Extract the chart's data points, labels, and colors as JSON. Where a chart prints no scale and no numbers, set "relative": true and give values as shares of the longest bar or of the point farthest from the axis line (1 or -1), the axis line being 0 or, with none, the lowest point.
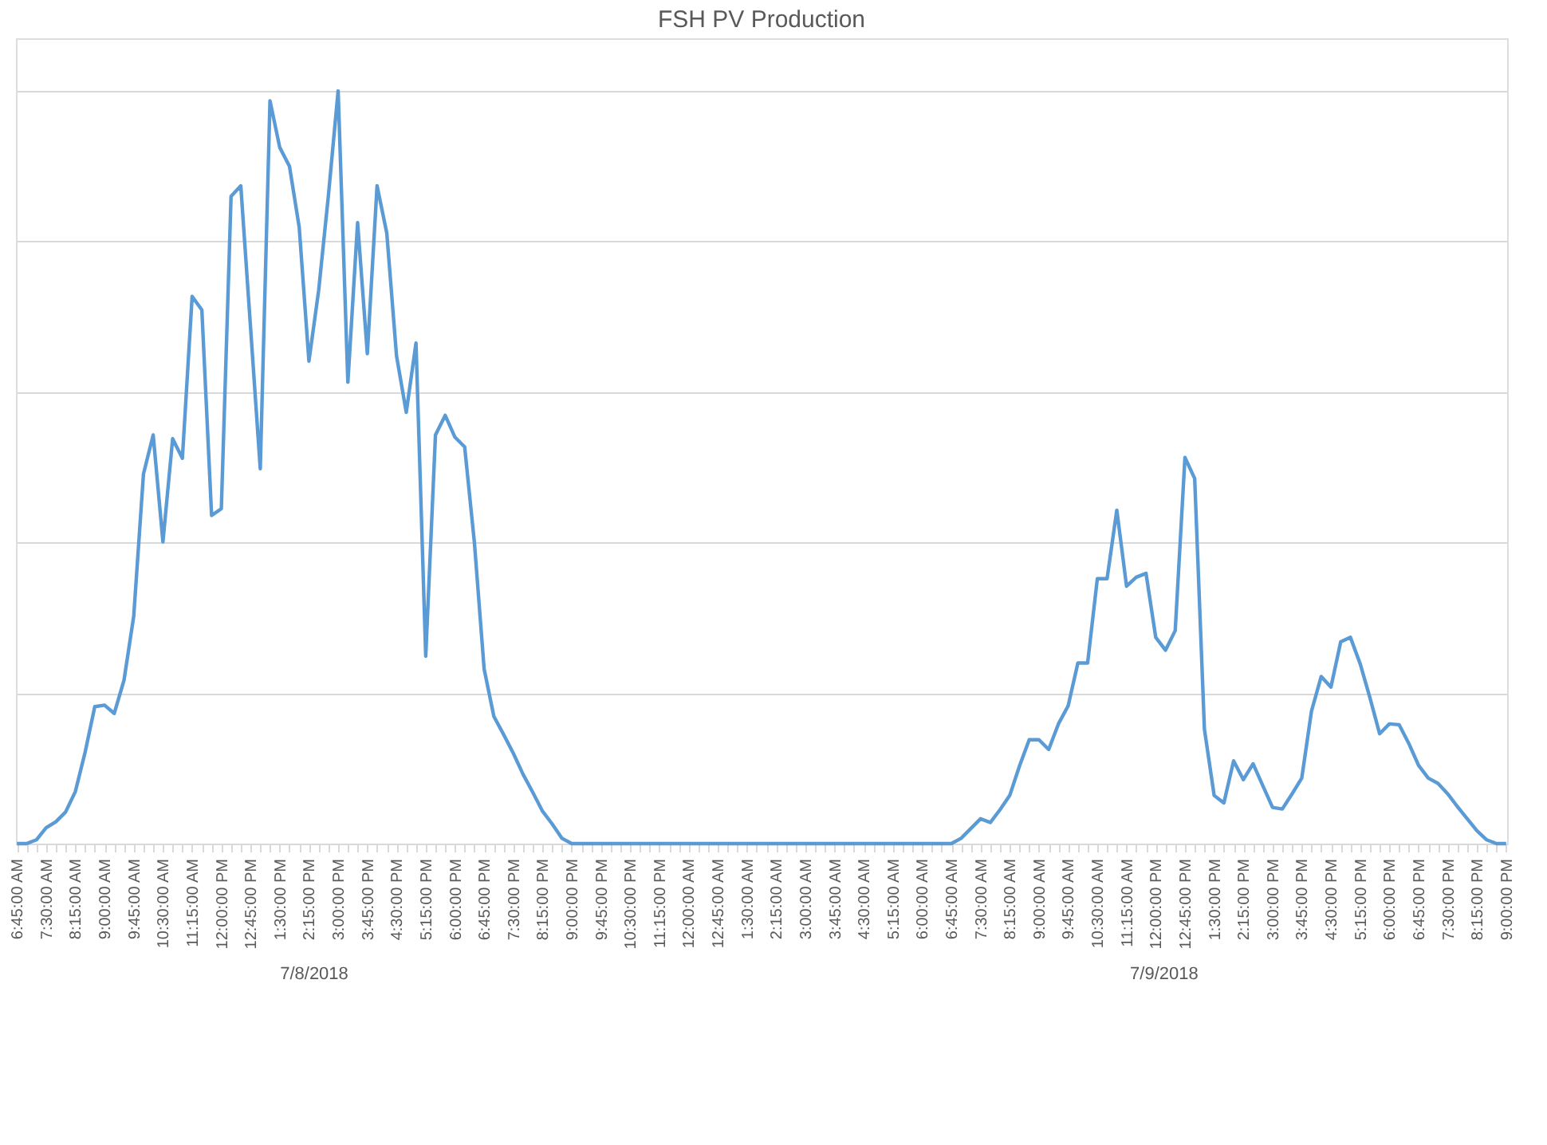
{
  "chart_data": {
    "type": "line",
    "title": "FSH PV Production",
    "relative": true,
    "grid": "y",
    "categories": [
      "6:45:00 AM",
      null,
      null,
      "7:30:00 AM",
      null,
      null,
      "8:15:00 AM",
      null,
      null,
      "9:00:00 AM",
      null,
      null,
      "9:45:00 AM",
      null,
      null,
      "10:30:00 AM",
      null,
      null,
      "11:15:00 AM",
      null,
      null,
      "12:00:00 PM",
      null,
      null,
      "12:45:00 PM",
      null,
      null,
      "1:30:00 PM",
      null,
      null,
      "2:15:00 PM",
      null,
      null,
      "3:00:00 PM",
      null,
      null,
      "3:45:00 PM",
      null,
      null,
      "4:30:00 PM",
      null,
      null,
      "5:15:00 PM",
      null,
      null,
      "6:00:00 PM",
      null,
      null,
      "6:45:00 PM",
      null,
      null,
      "7:30:00 PM",
      null,
      null,
      "8:15:00 PM",
      null,
      null,
      "9:00:00 PM",
      null,
      null,
      "9:45:00 PM",
      null,
      null,
      "10:30:00 PM",
      null,
      null,
      "11:15:00 PM",
      null,
      null,
      "12:00:00 AM",
      null,
      null,
      "12:45:00 AM",
      null,
      null,
      "1:30:00 AM",
      null,
      null,
      "2:15:00 AM",
      null,
      null,
      "3:00:00 AM",
      null,
      null,
      "3:45:00 AM",
      null,
      null,
      "4:30:00 AM",
      null,
      null,
      "5:15:00 AM",
      null,
      null,
      "6:00:00 AM",
      null,
      null,
      "6:45:00 AM",
      null,
      null,
      "7:30:00 AM",
      null,
      null,
      "8:15:00 AM",
      null,
      null,
      "9:00:00 AM",
      null,
      null,
      "9:45:00 AM",
      null,
      null,
      "10:30:00 AM",
      null,
      null,
      "11:15:00 AM",
      null,
      null,
      "12:00:00 PM",
      null,
      null,
      "12:45:00 PM",
      null,
      null,
      "1:30:00 PM",
      null,
      null,
      "2:15:00 PM",
      null,
      null,
      "3:00:00 PM",
      null,
      null,
      "3:45:00 PM",
      null,
      null,
      "4:30:00 PM",
      null,
      null,
      "5:15:00 PM",
      null,
      null,
      "6:00:00 PM",
      null,
      null,
      "6:45:00 PM",
      null,
      null,
      "7:30:00 PM",
      null,
      null,
      "8:15:00 PM",
      null,
      null,
      "9:00:00 PM"
    ],
    "series": [
      {
        "color": "#5b9bd5",
        "values": [
          0,
          0,
          0.005,
          0.021,
          0.029,
          0.042,
          0.069,
          0.121,
          0.182,
          0.184,
          0.173,
          0.217,
          0.302,
          0.491,
          0.543,
          0.401,
          0.538,
          0.512,
          0.727,
          0.709,
          0.436,
          0.445,
          0.86,
          0.874,
          0.686,
          0.498,
          0.987,
          0.925,
          0.9,
          0.819,
          0.641,
          0.735,
          0.861,
          1.0,
          0.613,
          0.825,
          0.651,
          0.874,
          0.811,
          0.648,
          0.573,
          0.665,
          0.249,
          0.543,
          0.569,
          0.54,
          0.527,
          0.4,
          0.232,
          0.169,
          0.145,
          0.12,
          0.092,
          0.068,
          0.043,
          0.026,
          0.007,
          0,
          0,
          0,
          0,
          0,
          0,
          0,
          0,
          0,
          0,
          0,
          0,
          0,
          0,
          0,
          0,
          0,
          0,
          0,
          0,
          0,
          0,
          0,
          0,
          0,
          0,
          0,
          0,
          0,
          0,
          0,
          0,
          0,
          0,
          0,
          0,
          0,
          0,
          0,
          0,
          0.007,
          0.02,
          0.033,
          0.028,
          0.045,
          0.064,
          0.103,
          0.138,
          0.138,
          0.125,
          0.159,
          0.183,
          0.24,
          0.24,
          0.352,
          0.352,
          0.443,
          0.342,
          0.354,
          0.359,
          0.274,
          0.257,
          0.283,
          0.513,
          0.485,
          0.152,
          0.064,
          0.054,
          0.11,
          0.085,
          0.106,
          0.077,
          0.048,
          0.046,
          0.066,
          0.087,
          0.176,
          0.222,
          0.208,
          0.268,
          0.274,
          0.239,
          0.194,
          0.146,
          0.159,
          0.158,
          0.133,
          0.104,
          0.087,
          0.08,
          0.066,
          0.049,
          0.033,
          0.017,
          0.005,
          0,
          0
        ]
      }
    ],
    "annotations": [
      "7/8/2018",
      "7/9/2018"
    ]
  }
}
